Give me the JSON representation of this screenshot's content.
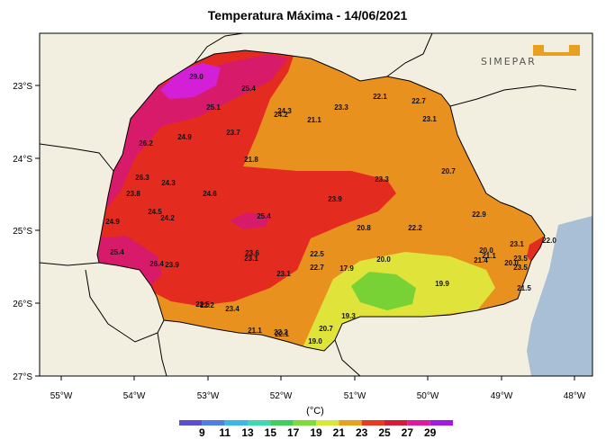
{
  "title": "Temperatura Máxima  - 14/06/2021",
  "logo": {
    "text": "SIMEPAR",
    "accent_color": "#e8a020"
  },
  "axes": {
    "lon_labels": [
      "55°W",
      "54°W",
      "53°W",
      "52°W",
      "51°W",
      "50°W",
      "49°W",
      "48°W"
    ],
    "lat_labels": [
      "23°S",
      "24°S",
      "25°S",
      "26°S",
      "27°S"
    ]
  },
  "legend": {
    "unit": "(°C)",
    "ticks": [
      "9",
      "11",
      "13",
      "15",
      "17",
      "19",
      "21",
      "23",
      "25",
      "27",
      "29"
    ],
    "colors": [
      "#5b4fd6",
      "#4f7ee6",
      "#3fb7e6",
      "#3fd8b0",
      "#3fcf5a",
      "#7ddb3a",
      "#d8e83a",
      "#e8a020",
      "#e83a20",
      "#d81a3a",
      "#e01aa0",
      "#a01ae0"
    ]
  },
  "stations": [
    {
      "v": "29.0"
    },
    {
      "v": "25.4"
    },
    {
      "v": "25.1"
    },
    {
      "v": "24.3"
    },
    {
      "v": "24.2"
    },
    {
      "v": "23.3"
    },
    {
      "v": "22.1"
    },
    {
      "v": "22.7"
    },
    {
      "v": "21.1"
    },
    {
      "v": "23.1"
    },
    {
      "v": "26.2"
    },
    {
      "v": "24.9"
    },
    {
      "v": "23.7"
    },
    {
      "v": "21.8"
    },
    {
      "v": "20.7"
    },
    {
      "v": "26.3"
    },
    {
      "v": "24.3"
    },
    {
      "v": "23.3"
    },
    {
      "v": "23.8"
    },
    {
      "v": "24.6"
    },
    {
      "v": "23.9"
    },
    {
      "v": "22.9"
    },
    {
      "v": "24.5"
    },
    {
      "v": "24.2"
    },
    {
      "v": "25.4"
    },
    {
      "v": "24.9"
    },
    {
      "v": "20.8"
    },
    {
      "v": "22.2"
    },
    {
      "v": "20.0"
    },
    {
      "v": "21.1"
    },
    {
      "v": "23.1"
    },
    {
      "v": "25.4"
    },
    {
      "v": "23.6"
    },
    {
      "v": "23.1"
    },
    {
      "v": "22.5"
    },
    {
      "v": "21.4"
    },
    {
      "v": "20.0"
    },
    {
      "v": "22.0"
    },
    {
      "v": "23.5"
    },
    {
      "v": "23.5"
    },
    {
      "v": "26.4"
    },
    {
      "v": "23.9"
    },
    {
      "v": "22.7"
    },
    {
      "v": "17.9"
    },
    {
      "v": "23.1"
    },
    {
      "v": "19.9"
    },
    {
      "v": "21.5"
    },
    {
      "v": "22.5"
    },
    {
      "v": "23.4"
    },
    {
      "v": "19.3"
    },
    {
      "v": "21.1"
    },
    {
      "v": "22.1"
    },
    {
      "v": "20.7"
    },
    {
      "v": "19.0"
    },
    {
      "v": "20.0"
    },
    {
      "v": "22.2"
    },
    {
      "v": "22.2"
    }
  ]
}
